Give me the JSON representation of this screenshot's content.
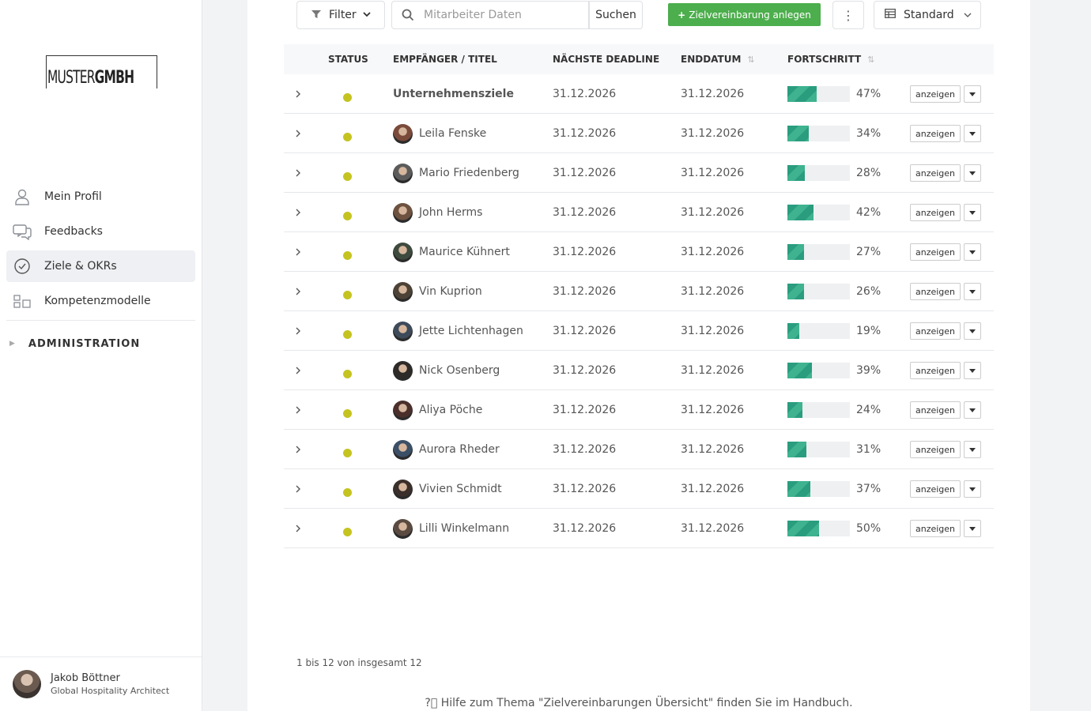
{
  "brand": {
    "logo_light": "MUSTER",
    "logo_bold": "GMBH"
  },
  "sidebar": {
    "items": [
      {
        "label": "Mein Profil",
        "icon": "user-icon"
      },
      {
        "label": "Feedbacks",
        "icon": "chat-icon"
      },
      {
        "label": "Ziele & OKRs",
        "icon": "check-circle-icon",
        "active": true
      },
      {
        "label": "Kompetenzmodelle",
        "icon": "grid-icon"
      }
    ],
    "admin_label": "ADMINISTRATION"
  },
  "user": {
    "name": "Jakob Böttner",
    "role": "Global Hospitality Architect"
  },
  "toolbar": {
    "filter_label": "Filter",
    "search_placeholder": "Mitarbeiter Daten",
    "search_button": "Suchen",
    "new_button": "Zielvereinbarung anlegen",
    "more": "⋮",
    "view_label": "Standard"
  },
  "table": {
    "headers": {
      "status": "STATUS",
      "recipient": "EMPFÄNGER / TITEL",
      "deadline": "NÄCHSTE DEADLINE",
      "enddate": "ENDDATUM",
      "progress": "FORTSCHRITT"
    },
    "show_label": "anzeigen",
    "rows": [
      {
        "name": "Unternehmensziele",
        "deadline": "31.12.2026",
        "enddate": "31.12.2026",
        "progress": 47,
        "pct": "47%",
        "bold": true
      },
      {
        "name": "Leila Fenske",
        "deadline": "31.12.2026",
        "enddate": "31.12.2026",
        "progress": 34,
        "pct": "34%"
      },
      {
        "name": "Mario Friedenberg",
        "deadline": "31.12.2026",
        "enddate": "31.12.2026",
        "progress": 28,
        "pct": "28%"
      },
      {
        "name": "John Herms",
        "deadline": "31.12.2026",
        "enddate": "31.12.2026",
        "progress": 42,
        "pct": "42%"
      },
      {
        "name": "Maurice Kühnert",
        "deadline": "31.12.2026",
        "enddate": "31.12.2026",
        "progress": 27,
        "pct": "27%"
      },
      {
        "name": "Vin Kuprion",
        "deadline": "31.12.2026",
        "enddate": "31.12.2026",
        "progress": 26,
        "pct": "26%"
      },
      {
        "name": "Jette Lichtenhagen",
        "deadline": "31.12.2026",
        "enddate": "31.12.2026",
        "progress": 19,
        "pct": "19%"
      },
      {
        "name": "Nick Osenberg",
        "deadline": "31.12.2026",
        "enddate": "31.12.2026",
        "progress": 39,
        "pct": "39%"
      },
      {
        "name": "Aliya Pöche",
        "deadline": "31.12.2026",
        "enddate": "31.12.2026",
        "progress": 24,
        "pct": "24%"
      },
      {
        "name": "Aurora Rheder",
        "deadline": "31.12.2026",
        "enddate": "31.12.2026",
        "progress": 31,
        "pct": "31%"
      },
      {
        "name": "Vivien Schmidt",
        "deadline": "31.12.2026",
        "enddate": "31.12.2026",
        "progress": 37,
        "pct": "37%"
      },
      {
        "name": "Lilli Winkelmann",
        "deadline": "31.12.2026",
        "enddate": "31.12.2026",
        "progress": 50,
        "pct": "50%"
      }
    ]
  },
  "colors": {
    "status_dot": "#c5c320",
    "progress_fill": "#2a9d7f",
    "primary_button": "#4cae4c"
  },
  "pager_text": "1 bis 12 von insgesamt 12",
  "help_text": "Hilfe zum Thema \"Zielvereinbarungen Übersicht\" finden Sie im Handbuch."
}
